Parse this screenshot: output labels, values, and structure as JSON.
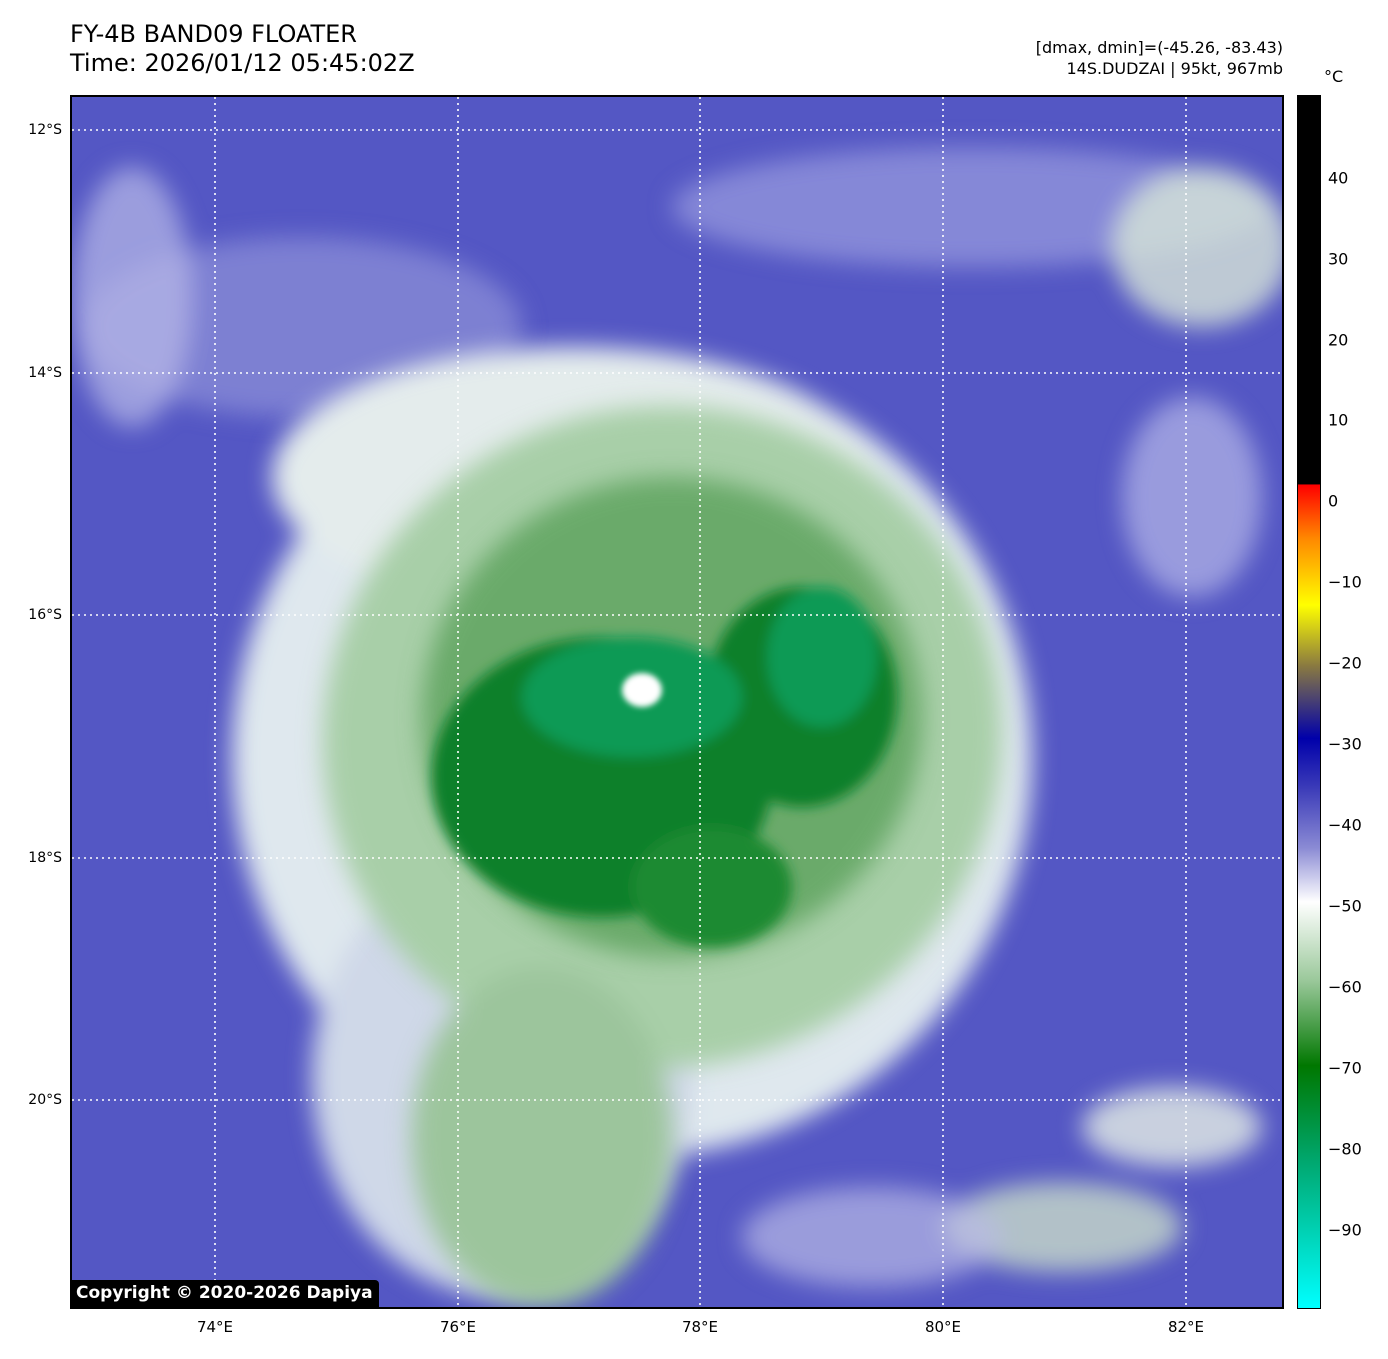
{
  "header": {
    "title_line1": "FY-4B BAND09 FLOATER",
    "title_line2": "Time: 2026/01/12 05:45:02Z",
    "stats_line": "[dmax, dmin]=(-45.26, -83.43)",
    "storm_line": "14S.DUDZAI | 95kt, 967mb"
  },
  "axes": {
    "lat_labels": [
      "12°S",
      "14°S",
      "16°S",
      "18°S",
      "20°S"
    ],
    "lon_labels": [
      "74°E",
      "76°E",
      "78°E",
      "80°E",
      "82°E"
    ],
    "lat_range": [
      -21.7,
      -11.7
    ],
    "lon_range": [
      72.8,
      82.8
    ],
    "grid": "dotted white"
  },
  "colorbar": {
    "unit": "°C",
    "ticks": [
      "40",
      "30",
      "20",
      "10",
      "0",
      "−10",
      "−20",
      "−30",
      "−40",
      "−50",
      "−60",
      "−70",
      "−80",
      "−90"
    ],
    "range": [
      -100,
      50
    ],
    "colors": {
      "above_zero": "#000000",
      "stops": [
        "#ff0000",
        "#ff8800",
        "#ffff00",
        "#8a7a40",
        "#0000aa",
        "#3a3ab8",
        "#8a8ad4",
        "#ffffff",
        "#9ac89a",
        "#007700",
        "#00a870",
        "#00ffff"
      ]
    }
  },
  "copyright": "Copyright © 2020-2026 Dapiya",
  "colors": {
    "background_cloud": "#5457c4",
    "cold_top": "#007a22",
    "eye": "#ffffff"
  }
}
